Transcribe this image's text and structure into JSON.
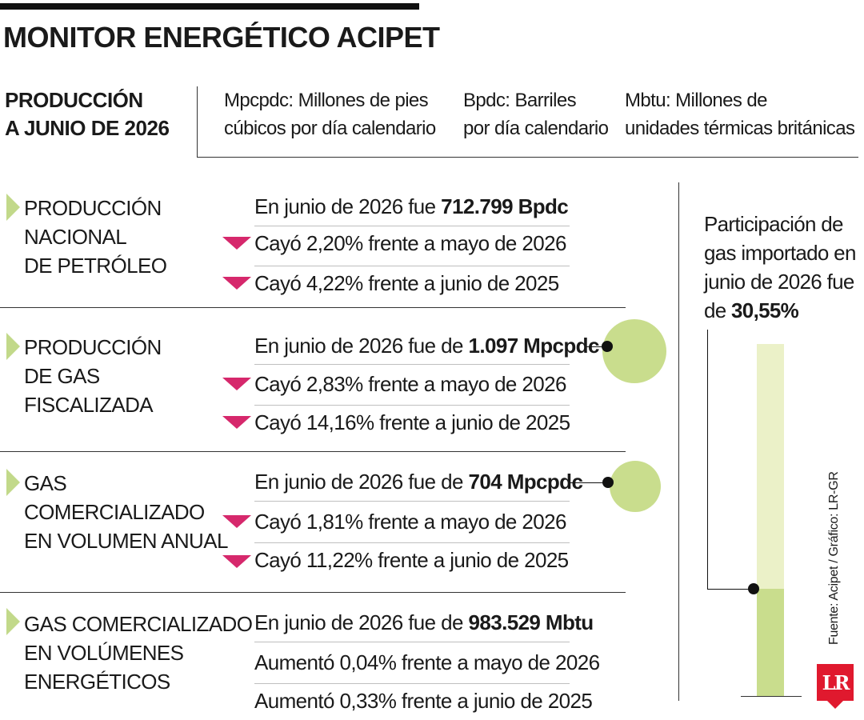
{
  "header": {
    "title": "MONITOR ENERGÉTICO ACIPET",
    "subtitle_line1": "PRODUCCIÓN",
    "subtitle_line2": "A JUNIO DE 2026"
  },
  "units_legend": [
    {
      "abbr": "Mpcpdc:",
      "line1": " Millones de pies",
      "line2": "cúbicos por día calendario"
    },
    {
      "abbr": "Bpdc:",
      "line1": " Barriles",
      "line2": "por día calendario"
    },
    {
      "abbr": "Mbtu:",
      "line1": " Millones de",
      "line2": "unidades térmicas británicas"
    }
  ],
  "sections": [
    {
      "label_lines": [
        "PRODUCCIÓN",
        "NACIONAL",
        "DE PETRÓLEO"
      ],
      "main_prefix": "En junio de 2026 fue ",
      "main_value": "712.799 Bpdc",
      "changes": [
        {
          "direction": "down",
          "verb": "Cayó",
          "pct": "2,20%",
          "rest": " frente a mayo de 2026"
        },
        {
          "direction": "down",
          "verb": "Cayó",
          "pct": "4,22%",
          "rest": " frente a junio de 2025"
        }
      ]
    },
    {
      "label_lines": [
        "PRODUCCIÓN",
        "DE GAS",
        "FISCALIZADA"
      ],
      "main_prefix": "En junio de 2026 fue de ",
      "main_value": "1.097 Mpcpdc",
      "changes": [
        {
          "direction": "down",
          "verb": "Cayó",
          "pct": "2,83%",
          "rest": " frente a mayo de 2026"
        },
        {
          "direction": "down",
          "verb": "Cayó",
          "pct": "14,16%",
          "rest": " frente a junio de 2025"
        }
      ]
    },
    {
      "label_lines": [
        "GAS",
        "COMERCIALIZADO",
        "EN VOLUMEN ANUAL"
      ],
      "main_prefix": "En junio de 2026 fue de ",
      "main_value": "704 Mpcpdc",
      "changes": [
        {
          "direction": "down",
          "verb": "Cayó",
          "pct": "1,81%",
          "rest": " frente a mayo de 2026"
        },
        {
          "direction": "down",
          "verb": "Cayó",
          "pct": "11,22%",
          "rest": " frente a junio de 2025"
        }
      ]
    },
    {
      "label_lines": [
        "GAS COMERCIALIZADO",
        "EN VOLÚMENES",
        "ENERGÉTICOS"
      ],
      "main_prefix": "En junio de 2026 fue de ",
      "main_value": "983.529 Mbtu",
      "changes": [
        {
          "direction": "up",
          "verb": "Aumentó",
          "pct": "0,04%",
          "rest": " frente a mayo de 2026"
        },
        {
          "direction": "up",
          "verb": "Aumentó",
          "pct": "0,33%",
          "rest": " frente a junio de 2025"
        }
      ]
    }
  ],
  "side_panel": {
    "lines": [
      "Participación de",
      "gas importado en",
      "junio de 2026 fue"
    ],
    "last_prefix": "de ",
    "last_value": "30,55%"
  },
  "source": "Fuente: Acipet / Gráfico: LR-GR",
  "logo": "LR",
  "colors": {
    "accent_green": "#c9dd8d",
    "light_green": "#ebf1c8",
    "arrow_green": "#c2d98a",
    "decrease_magenta": "#d6286c",
    "logo_red": "#e0192e"
  },
  "chart_data": {
    "type": "bar",
    "title": "Participación de gas importado en junio de 2026",
    "categories": [
      "Gas importado"
    ],
    "values": [
      30.55
    ],
    "unit": "%",
    "ylim": [
      0,
      100
    ],
    "bubbles": [
      {
        "label": "Producción de gas fiscalizada",
        "value": 1097,
        "unit": "Mpcpdc"
      },
      {
        "label": "Gas comercializado en volumen anual",
        "value": 704,
        "unit": "Mpcpdc"
      }
    ]
  }
}
